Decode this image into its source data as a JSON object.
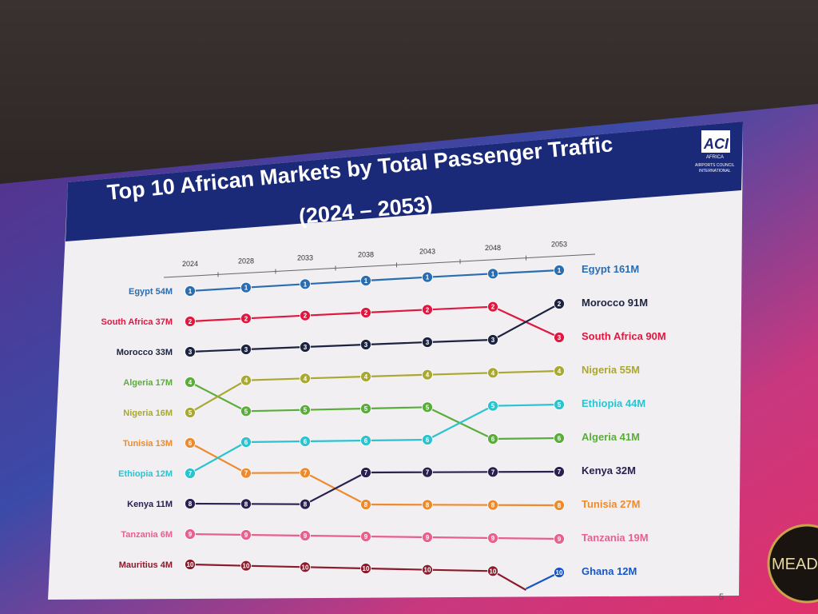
{
  "slide": {
    "title_line1": "Top 10 African Markets by Total Passenger Traffic",
    "title_line2": "(2024 – 2053)",
    "logo": {
      "mark": "ACI",
      "region": "AFRICA",
      "org": "AIRPORTS COUNCIL INTERNATIONAL"
    },
    "page_number": "5",
    "corner_logo_text": "MEAD",
    "header_color": "#1b2a78"
  },
  "chart_data": {
    "type": "bump",
    "title": "Top 10 African Markets by Total Passenger Traffic (2024 – 2053)",
    "years": [
      "2024",
      "2028",
      "2033",
      "2038",
      "2043",
      "2048",
      "2053"
    ],
    "y_axis": "rank (1 at top)",
    "series": [
      {
        "name": "Egypt",
        "color": "#2a6db0",
        "ranks": [
          1,
          1,
          1,
          1,
          1,
          1,
          1
        ],
        "start_label": "Egypt 54M",
        "end_label": "Egypt 161M"
      },
      {
        "name": "South Africa",
        "color": "#e0173f",
        "ranks": [
          2,
          2,
          2,
          2,
          2,
          2,
          3
        ],
        "start_label": "South Africa 37M",
        "end_label": "South Africa 90M"
      },
      {
        "name": "Morocco",
        "color": "#1c2340",
        "ranks": [
          3,
          3,
          3,
          3,
          3,
          3,
          2
        ],
        "start_label": "Morocco 33M",
        "end_label": "Morocco 91M"
      },
      {
        "name": "Algeria",
        "color": "#5aad3a",
        "ranks": [
          4,
          5,
          5,
          5,
          5,
          6,
          6
        ],
        "start_label": "Algeria 17M",
        "end_label": "Algeria 41M"
      },
      {
        "name": "Nigeria",
        "color": "#a9a830",
        "ranks": [
          5,
          4,
          4,
          4,
          4,
          4,
          4
        ],
        "start_label": "Nigeria 16M",
        "end_label": "Nigeria 55M"
      },
      {
        "name": "Tunisia",
        "color": "#ee8a2e",
        "ranks": [
          6,
          7,
          7,
          8,
          8,
          8,
          8
        ],
        "start_label": "Tunisia 13M",
        "end_label": "Tunisia 27M"
      },
      {
        "name": "Ethiopia",
        "color": "#2bc3d0",
        "ranks": [
          7,
          6,
          6,
          6,
          6,
          5,
          5
        ],
        "start_label": "Ethiopia 12M",
        "end_label": "Ethiopia 44M"
      },
      {
        "name": "Kenya",
        "color": "#2a2050",
        "ranks": [
          8,
          8,
          8,
          7,
          7,
          7,
          7
        ],
        "start_label": "Kenya 11M",
        "end_label": "Kenya 32M"
      },
      {
        "name": "Tanzania",
        "color": "#e8608c",
        "ranks": [
          9,
          9,
          9,
          9,
          9,
          9,
          9
        ],
        "start_label": "Tanzania 6M",
        "end_label": "Tanzania 19M"
      },
      {
        "name": "Mauritius",
        "color": "#8b1a2a",
        "ranks": [
          10,
          10,
          10,
          10,
          10,
          10,
          11
        ],
        "start_label": "Mauritius 4M",
        "end_label": ""
      },
      {
        "name": "Ghana",
        "color": "#1656c8",
        "ranks": [
          null,
          null,
          null,
          null,
          null,
          11,
          10
        ],
        "start_label": "",
        "end_label": "Ghana 12M"
      }
    ]
  }
}
